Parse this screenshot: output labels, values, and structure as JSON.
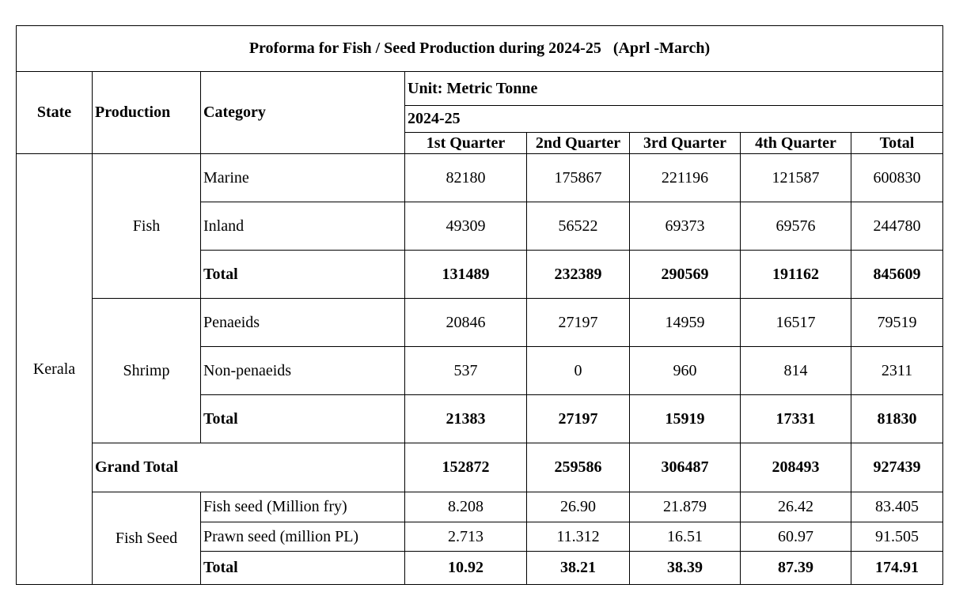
{
  "title": "Proforma for Fish / Seed Production during 2024-25   (Aprl -March)",
  "headers": {
    "state": "State",
    "production": "Production",
    "category": "Category",
    "unit": "Unit: Metric Tonne",
    "year": "2024-25",
    "q1": "1st Quarter",
    "q2": "2nd Quarter",
    "q3": "3rd Quarter",
    "q4": "4th Quarter",
    "total": "Total"
  },
  "state": "Kerala",
  "groups": {
    "fish": {
      "label": "Fish",
      "rows": [
        {
          "category": "Marine",
          "values": [
            "82180",
            "175867",
            "221196",
            "121587",
            "600830"
          ]
        },
        {
          "category": "Inland",
          "values": [
            "49309",
            "56522",
            "69373",
            "69576",
            "244780"
          ]
        },
        {
          "category": "Total",
          "values": [
            "131489",
            "232389",
            "290569",
            "191162",
            "845609"
          ]
        }
      ]
    },
    "shrimp": {
      "label": "Shrimp",
      "rows": [
        {
          "category": "Penaeids",
          "values": [
            "20846",
            "27197",
            "14959",
            "16517",
            "79519"
          ]
        },
        {
          "category": "Non-penaeids",
          "values": [
            "537",
            "0",
            "960",
            "814",
            "2311"
          ]
        },
        {
          "category": "Total",
          "values": [
            "21383",
            "27197",
            "15919",
            "17331",
            "81830"
          ]
        }
      ]
    },
    "grand_total": {
      "label": "Grand Total",
      "values": [
        "152872",
        "259586",
        "306487",
        "208493",
        "927439"
      ]
    },
    "fish_seed": {
      "label": "Fish Seed",
      "rows": [
        {
          "category": "Fish seed (Million fry)",
          "values": [
            "8.208",
            "26.90",
            "21.879",
            "26.42",
            "83.405"
          ]
        },
        {
          "category": "Prawn seed (million PL)",
          "values": [
            "2.713",
            "11.312",
            "16.51",
            "60.97",
            "91.505"
          ]
        },
        {
          "category": "Total",
          "values": [
            "10.92",
            "38.21",
            "38.39",
            "87.39",
            "174.91"
          ]
        }
      ]
    }
  }
}
